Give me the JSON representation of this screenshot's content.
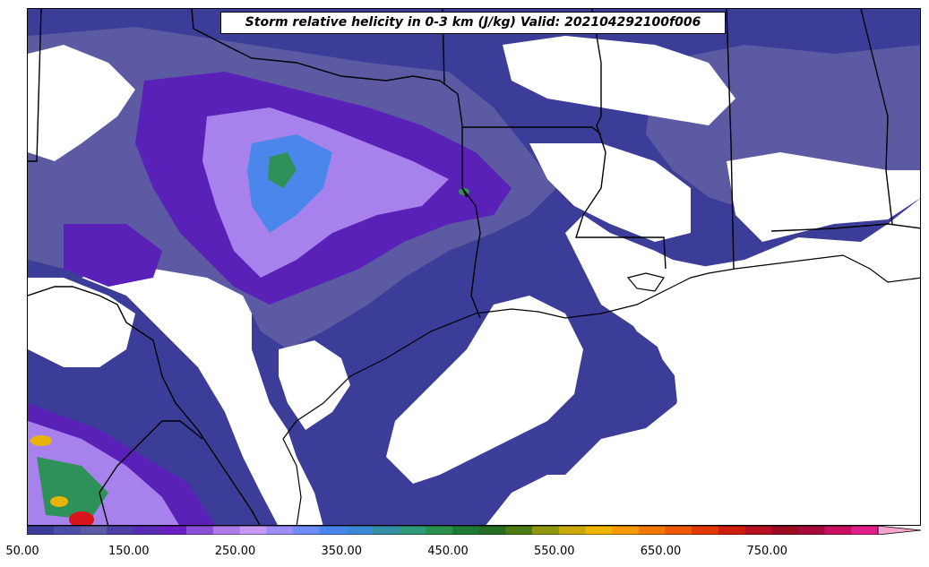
{
  "title": "Storm relative helicity in 0-3 km (J/kg) Valid: 202104292100f006",
  "colorbar": {
    "tick_labels": [
      "50.00",
      "150.00",
      "250.00",
      "350.00",
      "450.00",
      "550.00",
      "650.00",
      "750.00"
    ],
    "min": 50,
    "max": 850,
    "step": 25,
    "extend": "max",
    "colors": [
      "#3b3b9a",
      "#4b4ba8",
      "#5b5aa6",
      "#4e3fa8",
      "#5a2bb5",
      "#6a1fc4",
      "#8c4fd8",
      "#b07ae8",
      "#c79bf5",
      "#9d8df7",
      "#6d8ef5",
      "#4a84ee",
      "#3a8ad8",
      "#348fa6",
      "#2f9a78",
      "#2a8f4a",
      "#1e7a32",
      "#236e22",
      "#4c7a14",
      "#8e9612",
      "#c9a80a",
      "#f0b400",
      "#f59a00",
      "#f07800",
      "#ec5800",
      "#e03800",
      "#d01c0c",
      "#b41020",
      "#9a0a20",
      "#a40a3a",
      "#c8105e",
      "#e01e88",
      "#f05aaa"
    ],
    "extend_color": "#f7a3cf"
  },
  "map": {
    "region": "US Gulf Coast / Texas / Louisiana / Mississippi",
    "field_colors": {
      "low": "#3c3c99",
      "mid": "#5c5aa3",
      "purple": "#5a21b8",
      "lilac": "#a882ec",
      "blue": "#4b86ea",
      "green": "#2e9157",
      "yellow": "#e8b400",
      "red": "#d9141a"
    },
    "border_color": "#000000"
  }
}
